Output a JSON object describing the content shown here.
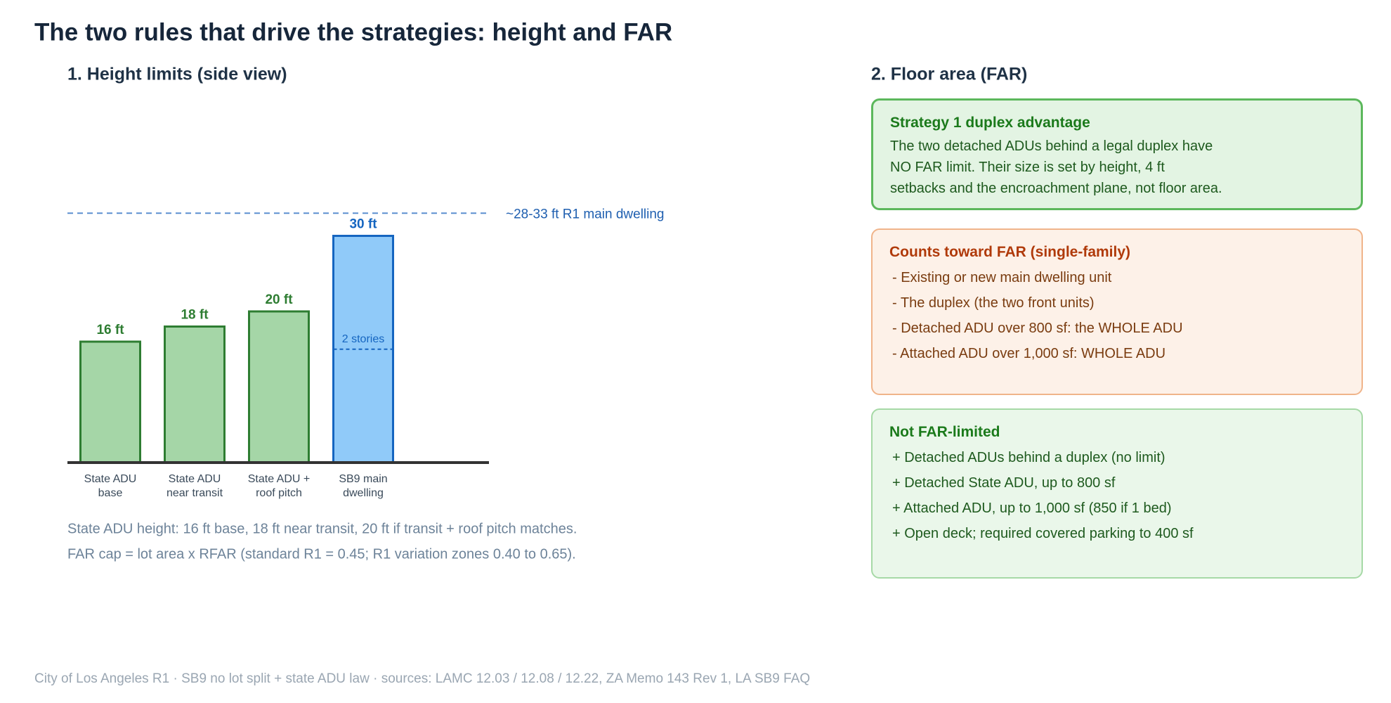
{
  "title": "The two rules that drive the strategies: height and FAR",
  "chart_data": {
    "type": "bar",
    "title": "1. Height limits (side view)",
    "categories": [
      "State ADU\nbase",
      "State ADU\nnear transit",
      "State ADU +\nroof pitch",
      "SB9 main\ndwelling"
    ],
    "values": [
      16,
      18,
      20,
      30
    ],
    "value_labels": [
      "16 ft",
      "18 ft",
      "20 ft",
      "30 ft"
    ],
    "colors": [
      "#a5d6a7",
      "#a5d6a7",
      "#a5d6a7",
      "#90caf9"
    ],
    "edge_colors": [
      "#2e7d32",
      "#2e7d32",
      "#2e7d32",
      "#1565c0"
    ],
    "ylim": [
      0,
      40
    ],
    "reference_line": {
      "value": 33,
      "label": "~28-33 ft R1 main dwelling",
      "color": "#5b8fd0"
    },
    "bar_annotation": {
      "bar": 3,
      "value": 15,
      "label": "2 stories"
    },
    "notes": [
      "State ADU height: 16 ft base, 18 ft near transit, 20 ft if transit + roof pitch matches.",
      "FAR cap = lot area x RFAR (standard R1 = 0.45; R1 variation zones 0.40 to 0.65)."
    ]
  },
  "far_panel": {
    "title": "2. Floor area (FAR)",
    "cards": [
      {
        "title": "Strategy 1 duplex advantage",
        "lines": [
          "The two detached ADUs behind a legal duplex have",
          "NO FAR limit. Their size is set by height, 4 ft",
          "setbacks and the encroachment plane, not floor area."
        ]
      },
      {
        "title": "Counts toward FAR (single-family)",
        "lines": [
          "- Existing or new main dwelling unit",
          "- The duplex (the two front units)",
          "- Detached ADU over 800 sf: the WHOLE ADU",
          "- Attached ADU over 1,000 sf: WHOLE ADU"
        ]
      },
      {
        "title": "Not FAR-limited",
        "lines": [
          "+ Detached ADUs behind a duplex (no limit)",
          "+ Detached State ADU, up to 800 sf",
          "+ Attached ADU, up to 1,000 sf (850 if 1 bed)",
          "+ Open deck; required covered parking to 400 sf"
        ]
      }
    ]
  },
  "footer": "City of Los Angeles R1 · SB9 no lot split + state ADU law · sources: LAMC 12.03 / 12.08 / 12.22, ZA Memo 143 Rev 1, LA SB9 FAQ"
}
